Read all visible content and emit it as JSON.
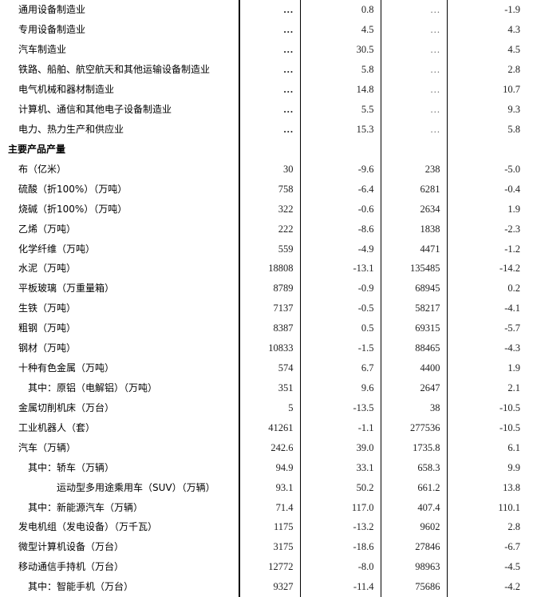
{
  "rows": [
    {
      "label": "通用设备制造业",
      "level": 1,
      "v": [
        "…",
        "0.8",
        "…",
        "-1.9"
      ]
    },
    {
      "label": "专用设备制造业",
      "level": 1,
      "v": [
        "…",
        "4.5",
        "…",
        "4.3"
      ]
    },
    {
      "label": "汽车制造业",
      "level": 1,
      "v": [
        "…",
        "30.5",
        "…",
        "4.5"
      ]
    },
    {
      "label": "铁路、船舶、航空航天和其他运输设备制造业",
      "level": 1,
      "v": [
        "…",
        "5.8",
        "…",
        "2.8"
      ]
    },
    {
      "label": "电气机械和器材制造业",
      "level": 1,
      "v": [
        "…",
        "14.8",
        "…",
        "10.7"
      ]
    },
    {
      "label": "计算机、通信和其他电子设备制造业",
      "level": 1,
      "v": [
        "…",
        "5.5",
        "…",
        "9.3"
      ]
    },
    {
      "label": "电力、热力生产和供应业",
      "level": 1,
      "v": [
        "…",
        "15.3",
        "…",
        "5.8"
      ]
    },
    {
      "label": "主要产品产量",
      "level": 0,
      "v": [
        "",
        "",
        "",
        ""
      ]
    },
    {
      "label": "布（亿米）",
      "level": 1,
      "v": [
        "30",
        "-9.6",
        "238",
        "-5.0"
      ]
    },
    {
      "label": "硫酸（折100%）（万吨）",
      "level": 1,
      "v": [
        "758",
        "-6.4",
        "6281",
        "-0.4"
      ]
    },
    {
      "label": "烧碱（折100%）（万吨）",
      "level": 1,
      "v": [
        "322",
        "-0.6",
        "2634",
        "1.9"
      ]
    },
    {
      "label": "乙烯（万吨）",
      "level": 1,
      "v": [
        "222",
        "-8.6",
        "1838",
        "-2.3"
      ]
    },
    {
      "label": "化学纤维（万吨）",
      "level": 1,
      "v": [
        "559",
        "-4.9",
        "4471",
        "-1.2"
      ]
    },
    {
      "label": "水泥（万吨）",
      "level": 1,
      "v": [
        "18808",
        "-13.1",
        "135485",
        "-14.2"
      ]
    },
    {
      "label": "平板玻璃（万重量箱）",
      "level": 1,
      "v": [
        "8789",
        "-0.9",
        "68945",
        "0.2"
      ]
    },
    {
      "label": "生铁（万吨）",
      "level": 1,
      "v": [
        "7137",
        "-0.5",
        "58217",
        "-4.1"
      ]
    },
    {
      "label": "粗钢（万吨）",
      "level": 1,
      "v": [
        "8387",
        "0.5",
        "69315",
        "-5.7"
      ]
    },
    {
      "label": "钢材（万吨）",
      "level": 1,
      "v": [
        "10833",
        "-1.5",
        "88465",
        "-4.3"
      ]
    },
    {
      "label": "十种有色金属（万吨）",
      "level": 1,
      "v": [
        "574",
        "6.7",
        "4400",
        "1.9"
      ]
    },
    {
      "label": "其中：原铝（电解铝）（万吨）",
      "level": 2,
      "v": [
        "351",
        "9.6",
        "2647",
        "2.1"
      ]
    },
    {
      "label": "金属切削机床（万台）",
      "level": 1,
      "v": [
        "5",
        "-13.5",
        "38",
        "-10.5"
      ]
    },
    {
      "label": "工业机器人（套）",
      "level": 1,
      "v": [
        "41261",
        "-1.1",
        "277536",
        "-10.5"
      ]
    },
    {
      "label": "汽车（万辆）",
      "level": 1,
      "v": [
        "242.6",
        "39.0",
        "1735.8",
        "6.1"
      ]
    },
    {
      "label": "其中：轿车（万辆）",
      "level": 2,
      "v": [
        "94.9",
        "33.1",
        "658.3",
        "9.9"
      ]
    },
    {
      "label": "运动型多用途乘用车（SUV）（万辆）",
      "level": 3,
      "v": [
        "93.1",
        "50.2",
        "661.2",
        "13.8"
      ]
    },
    {
      "label": "其中：新能源汽车（万辆）",
      "level": 2,
      "v": [
        "71.4",
        "117.0",
        "407.4",
        "110.1"
      ]
    },
    {
      "label": "发电机组（发电设备）（万千瓦）",
      "level": 1,
      "v": [
        "1175",
        "-13.2",
        "9602",
        "2.8"
      ]
    },
    {
      "label": "微型计算机设备（万台）",
      "level": 1,
      "v": [
        "3175",
        "-18.6",
        "27846",
        "-6.7"
      ]
    },
    {
      "label": "移动通信手持机（万台）",
      "level": 1,
      "v": [
        "12772",
        "-8.0",
        "98963",
        "-4.5"
      ]
    },
    {
      "label": "其中：智能手机（万台）",
      "level": 2,
      "v": [
        "9327",
        "-11.4",
        "75686",
        "-4.2"
      ]
    }
  ]
}
